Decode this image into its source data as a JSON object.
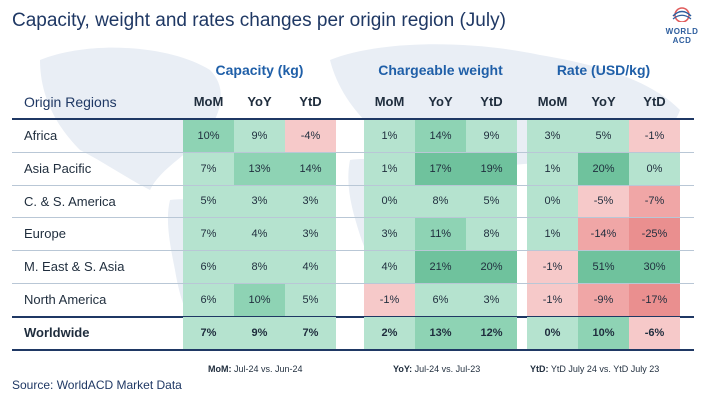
{
  "title": "Capacity, weight and rates changes per origin region (July)",
  "logo": {
    "line1": "WORLD",
    "line2": "ACD"
  },
  "origin_header": "Origin Regions",
  "groups": [
    {
      "title": "Capacity (kg)",
      "cols": [
        "MoM",
        "YoY",
        "YtD"
      ]
    },
    {
      "title": "Chargeable weight",
      "cols": [
        "MoM",
        "YoY",
        "YtD"
      ]
    },
    {
      "title": "Rate (USD/kg)",
      "cols": [
        "MoM",
        "YoY",
        "YtD"
      ]
    }
  ],
  "rows": [
    {
      "label": "Africa",
      "values": [
        "10%",
        "9%",
        "-4%",
        "1%",
        "14%",
        "9%",
        "3%",
        "5%",
        "-1%"
      ]
    },
    {
      "label": "Asia Pacific",
      "values": [
        "7%",
        "13%",
        "14%",
        "1%",
        "17%",
        "19%",
        "1%",
        "20%",
        "0%"
      ]
    },
    {
      "label": "C. & S. America",
      "values": [
        "5%",
        "3%",
        "3%",
        "0%",
        "8%",
        "5%",
        "0%",
        "-5%",
        "-7%"
      ]
    },
    {
      "label": "Europe",
      "values": [
        "7%",
        "4%",
        "3%",
        "3%",
        "11%",
        "8%",
        "1%",
        "-14%",
        "-25%"
      ]
    },
    {
      "label": "M. East & S. Asia",
      "values": [
        "6%",
        "8%",
        "4%",
        "4%",
        "21%",
        "20%",
        "-1%",
        "51%",
        "30%"
      ]
    },
    {
      "label": "North America",
      "values": [
        "6%",
        "10%",
        "5%",
        "-1%",
        "6%",
        "3%",
        "-1%",
        "-9%",
        "-17%"
      ]
    },
    {
      "label": "Worldwide",
      "values": [
        "7%",
        "9%",
        "7%",
        "2%",
        "13%",
        "12%",
        "0%",
        "10%",
        "-6%"
      ]
    }
  ],
  "footnotes": [
    {
      "key": "MoM:",
      "text": " Jul-24 vs. Jun-24"
    },
    {
      "key": "YoY:",
      "text": " Jul-24 vs. Jul-23"
    },
    {
      "key": "YtD:",
      "text": " YtD July 24 vs. YtD July 23"
    }
  ],
  "source": "Source: WorldACD Market Data",
  "colors": {
    "light_green": "#b5e3cf",
    "mid_green": "#8ed3b4",
    "dark_green": "#6fc29d",
    "light_red": "#f6c9c9",
    "mid_red": "#f0a6a6",
    "dark_red": "#ea8f8f",
    "title": "#1f3864",
    "accent": "#1f5fa8"
  }
}
